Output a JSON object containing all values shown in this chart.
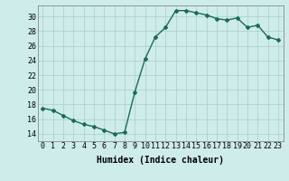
{
  "x": [
    0,
    1,
    2,
    3,
    4,
    5,
    6,
    7,
    8,
    9,
    10,
    11,
    12,
    13,
    14,
    15,
    16,
    17,
    18,
    19,
    20,
    21,
    22,
    23
  ],
  "y": [
    17.5,
    17.2,
    16.5,
    15.8,
    15.3,
    15.0,
    14.5,
    14.0,
    14.2,
    19.7,
    24.2,
    27.2,
    28.5,
    30.8,
    30.8,
    30.5,
    30.2,
    29.7,
    29.5,
    29.8,
    28.5,
    28.8,
    27.2,
    26.8
  ],
  "line_color": "#1a6b5a",
  "marker": "D",
  "marker_size": 2,
  "bg_color": "#ceecea",
  "grid_color": "#aed4d0",
  "xlabel": "Humidex (Indice chaleur)",
  "xlabel_fontsize": 7,
  "ylabel_ticks": [
    14,
    16,
    18,
    20,
    22,
    24,
    26,
    28,
    30
  ],
  "ylim": [
    13.0,
    31.5
  ],
  "xlim": [
    -0.5,
    23.5
  ],
  "tick_fontsize": 6,
  "line_width": 1.0
}
